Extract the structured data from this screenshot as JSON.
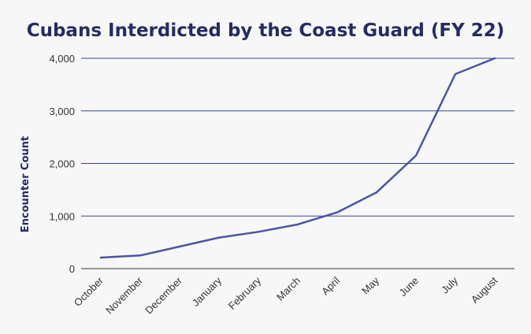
{
  "chart_data": {
    "type": "line",
    "title": "Cubans Interdicted by the Coast Guard (FY 22)",
    "xlabel": "",
    "ylabel": "Encounter Count",
    "categories": [
      "October",
      "November",
      "December",
      "January",
      "February",
      "March",
      "April",
      "May",
      "June",
      "July",
      "August"
    ],
    "series": [
      {
        "values": [
          210,
          250,
          420,
          590,
          700,
          840,
          1070,
          1450,
          2150,
          3700,
          4000
        ]
      }
    ],
    "ylim": [
      0,
      4000
    ],
    "yticks": [
      0,
      1000,
      2000,
      3000,
      4000
    ],
    "ytick_labels": [
      "0",
      "1,000",
      "2,000",
      "3,000",
      "4,000"
    ],
    "grid": true,
    "legend": "none",
    "colors": {
      "line": "#4955a5",
      "grid": "#3c4594",
      "title": "#252b63"
    }
  }
}
